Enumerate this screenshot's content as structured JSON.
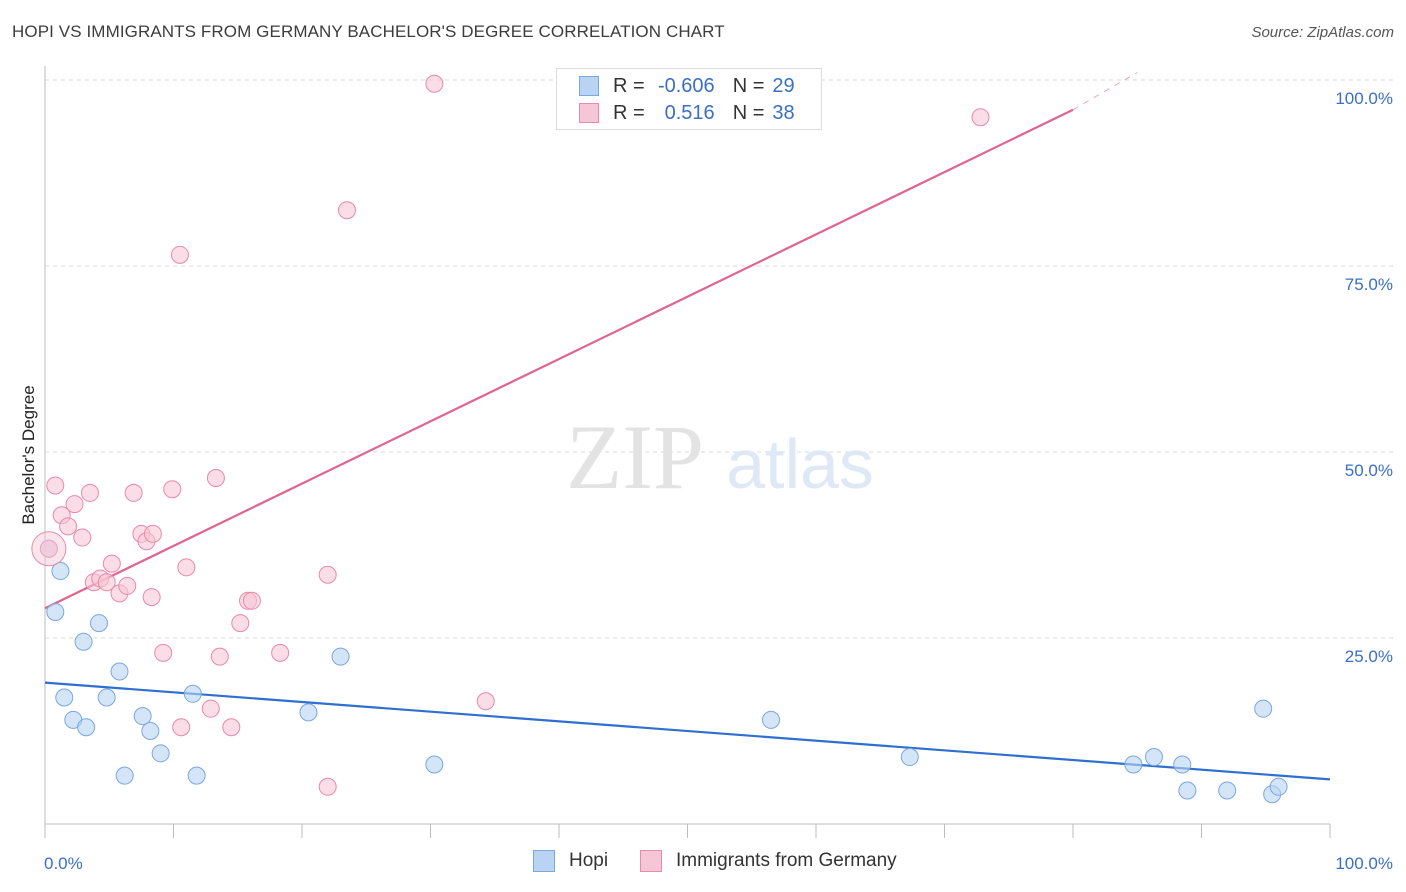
{
  "header": {
    "title": "HOPI VS IMMIGRANTS FROM GERMANY BACHELOR'S DEGREE CORRELATION CHART",
    "source": "Source: ZipAtlas.com"
  },
  "watermark": {
    "zip": "ZIP",
    "atlas": "atlas"
  },
  "legend_top": {
    "rows": [
      {
        "r_label": "R =",
        "r_value": "-0.606",
        "n_label": "N =",
        "n_value": "29"
      },
      {
        "r_label": "R =",
        "r_value": "0.516",
        "n_label": "N =",
        "n_value": "38"
      }
    ]
  },
  "legend_bottom": {
    "items": [
      "Hopi",
      "Immigrants from Germany"
    ]
  },
  "colors": {
    "hopi_fill": "#b9d3f3",
    "hopi_stroke": "#7aa7e0",
    "hopi_line": "#2e6fd0",
    "germany_fill": "#f7c6d6",
    "germany_stroke": "#e88aa8",
    "germany_line": "#e0658e",
    "tick_label": "#3a6fc4",
    "grid": "#d9d9d9"
  },
  "chart_data": {
    "type": "scatter",
    "title": "HOPI VS IMMIGRANTS FROM GERMANY BACHELOR'S DEGREE CORRELATION CHART",
    "xlabel": "",
    "ylabel": "Bachelor's Degree",
    "xlim": [
      0,
      100
    ],
    "ylim": [
      0,
      100
    ],
    "x_tick_labels": [
      "0.0%",
      "100.0%"
    ],
    "y_ticks": [
      25,
      50,
      75,
      100
    ],
    "y_tick_labels": [
      "25.0%",
      "50.0%",
      "75.0%",
      "100.0%"
    ],
    "grid": true,
    "legend": "bottom",
    "series": [
      {
        "name": "Hopi",
        "points": [
          [
            0.3,
            37.0
          ],
          [
            1.2,
            34.0
          ],
          [
            0.8,
            28.5
          ],
          [
            3.0,
            24.5
          ],
          [
            4.2,
            27.0
          ],
          [
            5.8,
            20.5
          ],
          [
            1.5,
            17.0
          ],
          [
            2.2,
            14.0
          ],
          [
            3.2,
            13.0
          ],
          [
            4.8,
            17.0
          ],
          [
            7.6,
            14.5
          ],
          [
            8.2,
            12.5
          ],
          [
            9.0,
            9.5
          ],
          [
            6.2,
            6.5
          ],
          [
            11.5,
            17.5
          ],
          [
            11.8,
            6.5
          ],
          [
            20.5,
            15.0
          ],
          [
            23.0,
            22.5
          ],
          [
            30.3,
            8.0
          ],
          [
            56.5,
            14.0
          ],
          [
            67.3,
            9.0
          ],
          [
            84.7,
            8.0
          ],
          [
            86.3,
            9.0
          ],
          [
            88.5,
            8.0
          ],
          [
            88.9,
            4.5
          ],
          [
            92.0,
            4.5
          ],
          [
            94.8,
            15.5
          ],
          [
            95.5,
            4.0
          ],
          [
            96.0,
            5.0
          ]
        ]
      },
      {
        "name": "Immigrants from Germany",
        "points": [
          [
            30.3,
            99.5
          ],
          [
            50.5,
            99.0
          ],
          [
            72.8,
            95.0
          ],
          [
            23.5,
            82.5
          ],
          [
            10.5,
            76.5
          ],
          [
            0.3,
            37.0
          ],
          [
            0.8,
            45.5
          ],
          [
            1.3,
            41.5
          ],
          [
            1.8,
            40.0
          ],
          [
            2.3,
            43.0
          ],
          [
            2.9,
            38.5
          ],
          [
            3.5,
            44.5
          ],
          [
            3.8,
            32.5
          ],
          [
            4.3,
            33.0
          ],
          [
            4.8,
            32.5
          ],
          [
            5.2,
            35.0
          ],
          [
            5.8,
            31.0
          ],
          [
            6.4,
            32.0
          ],
          [
            6.9,
            44.5
          ],
          [
            7.5,
            39.0
          ],
          [
            7.9,
            38.0
          ],
          [
            8.4,
            39.0
          ],
          [
            8.3,
            30.5
          ],
          [
            9.9,
            45.0
          ],
          [
            11.0,
            34.5
          ],
          [
            13.3,
            46.5
          ],
          [
            15.8,
            30.0
          ],
          [
            16.1,
            30.0
          ],
          [
            22.0,
            33.5
          ],
          [
            15.2,
            27.0
          ],
          [
            9.2,
            23.0
          ],
          [
            13.6,
            22.5
          ],
          [
            18.3,
            23.0
          ],
          [
            10.6,
            13.0
          ],
          [
            12.9,
            15.5
          ],
          [
            14.5,
            13.0
          ],
          [
            22.0,
            5.0
          ],
          [
            34.3,
            16.5
          ]
        ]
      }
    ],
    "trendlines": [
      {
        "series": "Hopi",
        "x": [
          0,
          100
        ],
        "y": [
          19.0,
          6.0
        ],
        "style": "solid"
      },
      {
        "series": "Immigrants from Germany",
        "x": [
          0,
          80
        ],
        "y": [
          29.0,
          96.0
        ],
        "style": "solid"
      },
      {
        "series": "Immigrants from Germany",
        "x": [
          80,
          85
        ],
        "y": [
          96.0,
          101.0
        ],
        "style": "dashed"
      }
    ]
  }
}
